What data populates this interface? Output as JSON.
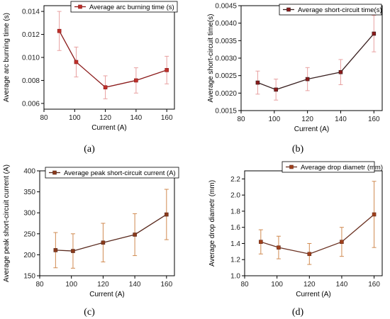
{
  "chart_data": [
    {
      "type": "line",
      "panel_label": "(a)",
      "xlabel": "Current (A)",
      "ylabel": "Average arc burning time (s)",
      "xlim": [
        80,
        165
      ],
      "ylim": [
        0.0055,
        0.0145
      ],
      "xticks": [
        80,
        100,
        120,
        140,
        160
      ],
      "xtick_labels": [
        "80",
        "100",
        "120",
        "140",
        "160"
      ],
      "yticks": [
        0.006,
        0.008,
        0.01,
        0.012,
        0.014
      ],
      "ytick_labels": [
        "0.006",
        "0.008",
        "0.010",
        "0.012",
        "0.014"
      ],
      "legend_position": "top-right",
      "series": [
        {
          "name": "Average arc burning time (s)",
          "line_color": "#8b1a1a",
          "marker_color": "#c0302a",
          "errorbar_color": "#e8a0a0",
          "x": [
            90,
            101,
            120,
            140,
            160
          ],
          "y": [
            0.0123,
            0.0096,
            0.0074,
            0.008,
            0.0089
          ],
          "yerr": [
            0.0017,
            0.0013,
            0.001,
            0.0011,
            0.0012
          ]
        }
      ]
    },
    {
      "type": "line",
      "panel_label": "(b)",
      "xlabel": "Current (A)",
      "ylabel": "Average short-circuit time(s)",
      "xlim": [
        80,
        165
      ],
      "ylim": [
        0.0015,
        0.0045
      ],
      "xticks": [
        80,
        100,
        120,
        140,
        160
      ],
      "xtick_labels": [
        "80",
        "100",
        "120",
        "140",
        "160"
      ],
      "yticks": [
        0.0015,
        0.002,
        0.0025,
        0.003,
        0.0035,
        0.004,
        0.0045
      ],
      "ytick_labels": [
        "0.0015",
        "0.0020",
        "0.0025",
        "0.0030",
        "0.0035",
        "0.0040",
        "0.0045"
      ],
      "legend_position": "top-center",
      "series": [
        {
          "name": "Average short-circuit time(s)",
          "line_color": "#3a2020",
          "marker_color": "#8b1a1a",
          "errorbar_color": "#e8a0a0",
          "x": [
            90,
            101,
            120,
            140,
            160
          ],
          "y": [
            0.0023,
            0.0021,
            0.0024,
            0.0026,
            0.0037
          ],
          "yerr": [
            0.00033,
            0.0003,
            0.00033,
            0.00036,
            0.00052
          ]
        }
      ]
    },
    {
      "type": "line",
      "panel_label": "(c)",
      "xlabel": "Current (A)",
      "ylabel": "Average peak short-circuit current (A)",
      "xlim": [
        80,
        165
      ],
      "ylim": [
        150,
        400
      ],
      "xticks": [
        80,
        100,
        120,
        140,
        160
      ],
      "xtick_labels": [
        "80",
        "100",
        "120",
        "140",
        "160"
      ],
      "yticks": [
        150,
        200,
        250,
        300,
        350,
        400
      ],
      "ytick_labels": [
        "150",
        "200",
        "250",
        "300",
        "350",
        "400"
      ],
      "legend_position": "top-center",
      "series": [
        {
          "name": "Average peak short-circuit current (A)",
          "line_color": "#5a2a1e",
          "marker_color": "#8b3a1a",
          "errorbar_color": "#d08a50",
          "x": [
            90,
            101,
            120,
            140,
            160
          ],
          "y": [
            211,
            209,
            229,
            248,
            296
          ],
          "yerr": [
            42,
            41,
            46,
            50,
            60
          ]
        }
      ]
    },
    {
      "type": "line",
      "panel_label": "(d)",
      "xlabel": "Current (A)",
      "ylabel": "Average drop diametr (mm)",
      "xlim": [
        80,
        165
      ],
      "ylim": [
        1.0,
        2.3
      ],
      "xticks": [
        80,
        100,
        120,
        140,
        160
      ],
      "xtick_labels": [
        "80",
        "100",
        "120",
        "140",
        "160"
      ],
      "yticks": [
        1.0,
        1.2,
        1.4,
        1.6,
        1.8,
        2.0,
        2.2
      ],
      "ytick_labels": [
        "1.0",
        "1.2",
        "1.4",
        "1.6",
        "1.8",
        "2.0",
        "2.2"
      ],
      "legend_position": "top-right",
      "series": [
        {
          "name": "Average drop diametr (mm)",
          "line_color": "#6a3020",
          "marker_color": "#a0401a",
          "errorbar_color": "#d08a50",
          "x": [
            90,
            101,
            120,
            140,
            160
          ],
          "y": [
            1.42,
            1.35,
            1.27,
            1.42,
            1.76
          ],
          "yerr": [
            0.15,
            0.14,
            0.13,
            0.18,
            0.41
          ]
        }
      ]
    }
  ]
}
